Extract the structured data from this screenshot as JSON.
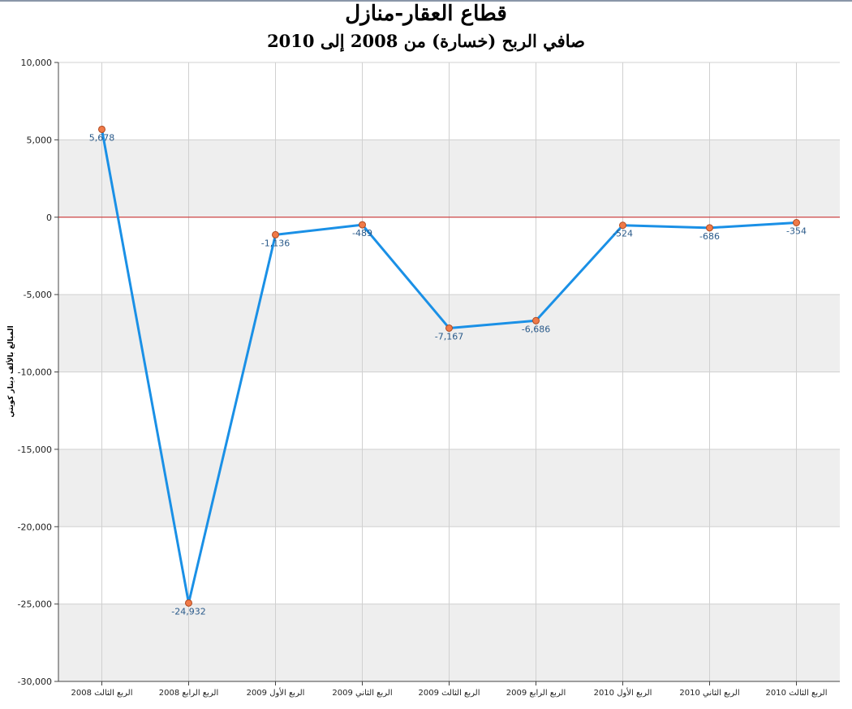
{
  "chart_data": {
    "type": "line",
    "title": "قطاع العقار-منازل",
    "subtitle": "صافي الربح (خسارة) من 2008 إلى 2010",
    "xlabel": "",
    "ylabel": "المبالغ بالألف دينار كويتي",
    "categories": [
      "الربع الثالث 2008",
      "الربع الرابع 2008",
      "الربع الأول 2009",
      "الربع الثاني 2009",
      "الربع الثالث 2009",
      "الربع الرابع 2009",
      "الربع الأول 2010",
      "الربع الثاني 2010",
      "الربع الثالث 2010"
    ],
    "series": [
      {
        "values": [
          5678,
          -24932,
          -1136,
          -489,
          -7167,
          -6686,
          -524,
          -686,
          -354
        ],
        "labels": [
          "5,678",
          "-24,932",
          "-1,136",
          "-489",
          "-7,167",
          "-6,686",
          "-524",
          "-686",
          "-354"
        ]
      }
    ],
    "ylim": [
      -30000,
      10000
    ],
    "yticks": [
      10000,
      5000,
      0,
      -5000,
      -10000,
      -15000,
      -20000,
      -25000,
      -30000
    ],
    "ytick_labels": [
      "10,000",
      "5,000",
      "0",
      "-5,000",
      "-10,000",
      "-15,000",
      "-20,000",
      "-25,000",
      "-30,000"
    ],
    "grid": true,
    "zero_line": true,
    "colors": {
      "line": "#1a90e6",
      "marker_fill": "#f07a48",
      "marker_stroke": "#b04a20",
      "zero_line": "#cc2222",
      "band": "#eeeeee",
      "grid": "#d0d0d0",
      "label": "#2a5a8a"
    }
  }
}
